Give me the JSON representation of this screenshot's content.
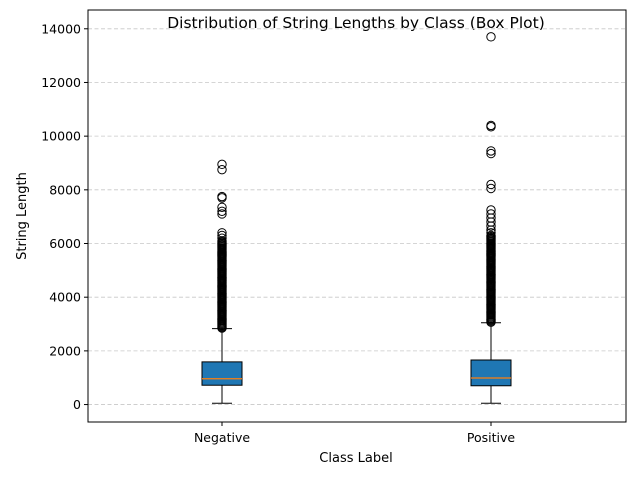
{
  "chart_data": {
    "type": "box",
    "title": "Distribution of String Lengths by Class (Box Plot)",
    "xlabel": "Class Label",
    "ylabel": "String Length",
    "ylim": [
      -650,
      14700
    ],
    "yticks": [
      0,
      2000,
      4000,
      6000,
      8000,
      10000,
      12000,
      14000
    ],
    "grid": "y-dashed",
    "box_color": "#1f77b4",
    "median_color": "#ff7f0e",
    "categories": [
      "Negative",
      "Positive"
    ],
    "boxes": [
      {
        "category": "Negative",
        "whisker_low": 50,
        "q1": 720,
        "median": 960,
        "q3": 1590,
        "whisker_high": 2830,
        "outliers_dense_range": [
          2850,
          6100
        ],
        "outliers": [
          6200,
          6300,
          6400,
          7100,
          7200,
          7350,
          7700,
          7750,
          8750,
          8950
        ]
      },
      {
        "category": "Positive",
        "whisker_low": 50,
        "q1": 700,
        "median": 990,
        "q3": 1660,
        "whisker_high": 3050,
        "outliers_dense_range": [
          3070,
          6300
        ],
        "outliers": [
          6400,
          6500,
          6650,
          6800,
          6950,
          7100,
          7250,
          8050,
          8200,
          9350,
          9450,
          10350,
          10400,
          13700
        ]
      }
    ]
  }
}
